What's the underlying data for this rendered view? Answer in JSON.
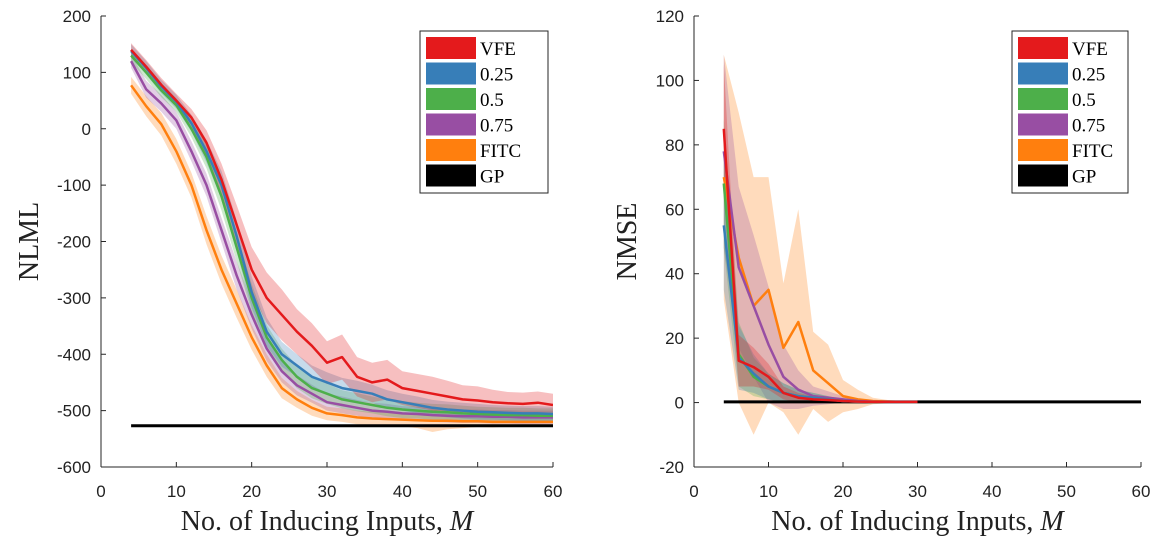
{
  "chart_data": [
    {
      "type": "line",
      "xlabel": "No. of Inducing Inputs, M",
      "ylabel": "NLML",
      "xlim": [
        0,
        60
      ],
      "ylim": [
        -600,
        200
      ],
      "xticks": [
        0,
        10,
        20,
        30,
        40,
        50,
        60
      ],
      "yticks": [
        200,
        100,
        0,
        -100,
        -200,
        -300,
        -400,
        -500,
        -600
      ],
      "xtick_labels": [
        "0",
        "10",
        "20",
        "30",
        "40",
        "50",
        "60"
      ],
      "ytick_labels": [
        "200",
        "100",
        "0",
        "-100",
        "-200",
        "-300",
        "-400",
        "-500",
        "-600"
      ],
      "legend_position": "top-right",
      "grid": false,
      "x": [
        4,
        6,
        8,
        10,
        12,
        14,
        16,
        18,
        20,
        22,
        24,
        26,
        28,
        30,
        32,
        34,
        36,
        38,
        40,
        42,
        44,
        46,
        48,
        50,
        52,
        54,
        56,
        58,
        60
      ],
      "series": [
        {
          "name": "GP",
          "color": "#000000",
          "x": [
            4,
            60
          ],
          "values": [
            -527,
            -527
          ]
        },
        {
          "name": "FITC",
          "color": "#ff7f0e",
          "values": [
            77,
            40,
            8,
            -40,
            -100,
            -180,
            -250,
            -310,
            -370,
            -420,
            -460,
            -480,
            -495,
            -505,
            -508,
            -512,
            -514,
            -515,
            -516,
            -517,
            -518,
            -518,
            -519,
            -519,
            -520,
            -520,
            -520,
            -520,
            -520
          ],
          "band": [
            15,
            18,
            20,
            22,
            22,
            25,
            25,
            25,
            22,
            20,
            18,
            15,
            14,
            12,
            12,
            12,
            12,
            12,
            12,
            14,
            20,
            15,
            12,
            10,
            10,
            8,
            8,
            8,
            8
          ]
        },
        {
          "name": "0.75",
          "color": "#984ea3",
          "values": [
            120,
            70,
            45,
            15,
            -40,
            -100,
            -180,
            -260,
            -330,
            -390,
            -430,
            -455,
            -470,
            -485,
            -490,
            -495,
            -500,
            -502,
            -505,
            -506,
            -508,
            -509,
            -510,
            -510,
            -511,
            -511,
            -512,
            -512,
            -512
          ],
          "band": [
            12,
            15,
            15,
            15,
            18,
            20,
            22,
            25,
            25,
            22,
            20,
            18,
            16,
            15,
            15,
            14,
            14,
            14,
            13,
            13,
            12,
            12,
            12,
            12,
            12,
            12,
            12,
            12,
            12
          ]
        },
        {
          "name": "0.5",
          "color": "#4daf4a",
          "values": [
            130,
            100,
            68,
            42,
            0,
            -50,
            -120,
            -210,
            -300,
            -370,
            -410,
            -440,
            -460,
            -470,
            -480,
            -485,
            -490,
            -495,
            -498,
            -500,
            -502,
            -503,
            -505,
            -506,
            -507,
            -508,
            -508,
            -509,
            -509
          ],
          "band": [
            12,
            12,
            12,
            12,
            15,
            20,
            25,
            25,
            25,
            22,
            20,
            20,
            18,
            18,
            16,
            16,
            15,
            15,
            15,
            14,
            14,
            14,
            14,
            13,
            13,
            13,
            13,
            13,
            13
          ]
        },
        {
          "name": "0.25",
          "color": "#377eb8",
          "values": [
            138,
            108,
            75,
            48,
            10,
            -40,
            -100,
            -190,
            -290,
            -360,
            -400,
            -420,
            -440,
            -450,
            -460,
            -465,
            -470,
            -480,
            -485,
            -490,
            -495,
            -498,
            -500,
            -502,
            -503,
            -504,
            -505,
            -505,
            -506
          ],
          "band": [
            12,
            12,
            12,
            12,
            15,
            20,
            25,
            28,
            28,
            25,
            22,
            20,
            20,
            18,
            18,
            18,
            16,
            16,
            15,
            15,
            14,
            14,
            14,
            14,
            13,
            13,
            13,
            13,
            13
          ]
        },
        {
          "name": "VFE",
          "color": "#e41a1c",
          "values": [
            140,
            110,
            78,
            50,
            20,
            -25,
            -90,
            -170,
            -250,
            -300,
            -330,
            -360,
            -385,
            -415,
            -405,
            -440,
            -450,
            -445,
            -460,
            -465,
            -470,
            -475,
            -480,
            -482,
            -485,
            -487,
            -488,
            -486,
            -490
          ],
          "band": [
            12,
            12,
            12,
            12,
            15,
            22,
            28,
            35,
            40,
            45,
            45,
            40,
            40,
            38,
            40,
            35,
            35,
            35,
            30,
            30,
            30,
            28,
            25,
            25,
            22,
            20,
            20,
            20,
            20
          ]
        }
      ]
    },
    {
      "type": "line",
      "xlabel": "No. of Inducing Inputs, M",
      "ylabel": "NMSE",
      "xlim": [
        0,
        60
      ],
      "ylim": [
        -20,
        120
      ],
      "xticks": [
        0,
        10,
        20,
        30,
        40,
        50,
        60
      ],
      "yticks": [
        120,
        100,
        80,
        60,
        40,
        20,
        0,
        -20
      ],
      "xtick_labels": [
        "0",
        "10",
        "20",
        "30",
        "40",
        "50",
        "60"
      ],
      "ytick_labels": [
        "120",
        "100",
        "80",
        "60",
        "40",
        "20",
        "0",
        "-20"
      ],
      "legend_position": "top-right",
      "grid": false,
      "x": [
        4,
        6,
        8,
        10,
        12,
        14,
        16,
        18,
        20,
        22,
        24,
        26,
        28,
        30
      ],
      "series": [
        {
          "name": "GP",
          "color": "#000000",
          "x": [
            4,
            60
          ],
          "values": [
            0.2,
            0.2
          ]
        },
        {
          "name": "FITC",
          "color": "#ff7f0e",
          "values": [
            70,
            45,
            30,
            35,
            17,
            25,
            10,
            6,
            2,
            1,
            0.5,
            0.3,
            0.2,
            0.2
          ],
          "band": [
            38,
            45,
            40,
            35,
            20,
            35,
            12,
            12,
            5,
            3,
            1,
            0.5,
            0.3,
            0.2
          ]
        },
        {
          "name": "0.75",
          "color": "#984ea3",
          "values": [
            78,
            42,
            30,
            18,
            8,
            4,
            2,
            1.5,
            1,
            0.5,
            0.3,
            0.2,
            0.2,
            0.2
          ],
          "band": [
            30,
            25,
            22,
            18,
            10,
            6,
            3,
            2,
            1,
            0.5,
            0.3,
            0.2,
            0.2,
            0.2
          ]
        },
        {
          "name": "0.5",
          "color": "#4daf4a",
          "values": [
            68,
            15,
            8,
            5,
            3,
            2,
            1.5,
            1,
            0.5,
            0.3,
            0.2,
            0.2,
            0.2,
            0.2
          ],
          "band": [
            20,
            10,
            6,
            4,
            3,
            2,
            1.5,
            1,
            0.5,
            0.3,
            0.2,
            0.2,
            0.2,
            0.2
          ]
        },
        {
          "name": "0.25",
          "color": "#377eb8",
          "values": [
            55,
            14,
            9,
            5,
            3,
            2,
            1.5,
            1,
            0.5,
            0.3,
            0.2,
            0.2,
            0.2,
            0.2
          ],
          "band": [
            20,
            10,
            6,
            4,
            3,
            2,
            1.5,
            1,
            0.5,
            0.3,
            0.2,
            0.2,
            0.2,
            0.2
          ]
        },
        {
          "name": "VFE",
          "color": "#e41a1c",
          "values": [
            85,
            13,
            11,
            8,
            3,
            1.5,
            1,
            0.8,
            0.5,
            0.3,
            0.2,
            0.2,
            0.2,
            0.2
          ],
          "band": [
            20,
            8,
            6,
            4,
            2,
            1.5,
            1,
            0.8,
            0.5,
            0.3,
            0.2,
            0.2,
            0.2,
            0.2
          ]
        }
      ]
    }
  ]
}
